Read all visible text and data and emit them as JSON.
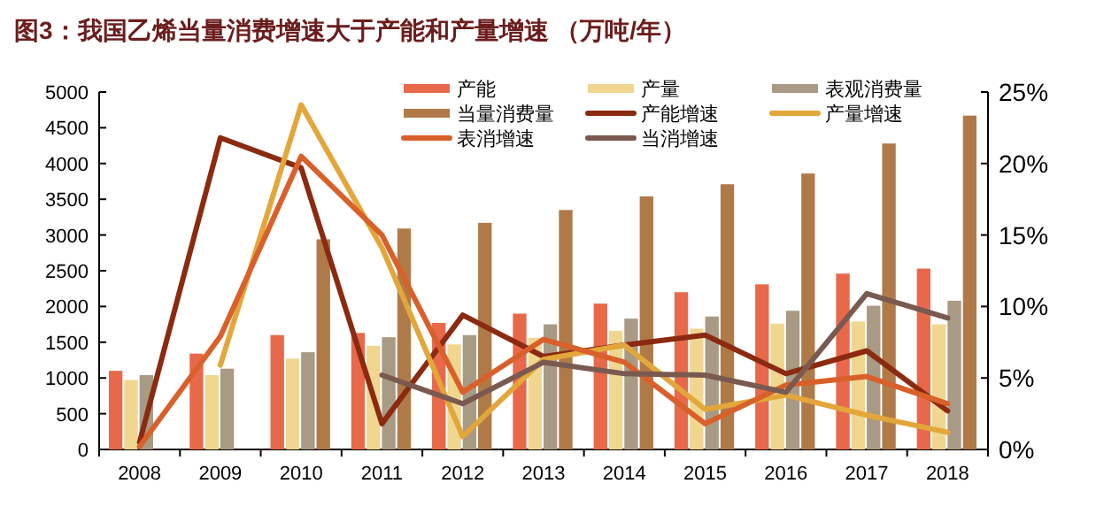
{
  "chart_data": {
    "type": "bar",
    "title": "图3：我国乙烯当量消费增速大于产能和产量增速 （万吨/年）",
    "categories": [
      "2008",
      "2009",
      "2010",
      "2011",
      "2012",
      "2013",
      "2014",
      "2015",
      "2016",
      "2017",
      "2018"
    ],
    "series": [
      {
        "name": "产能",
        "color": "#e8694a",
        "values": [
          1100,
          1340,
          1600,
          1630,
          1770,
          1900,
          2040,
          2200,
          2310,
          2460,
          2530
        ]
      },
      {
        "name": "产量",
        "color": "#f0d68e",
        "values": [
          970,
          1040,
          1270,
          1450,
          1470,
          1560,
          1660,
          1690,
          1760,
          1790,
          1750
        ]
      },
      {
        "name": "表观消费量",
        "color": "#a89a84",
        "values": [
          1040,
          1130,
          1360,
          1570,
          1600,
          1750,
          1830,
          1860,
          1940,
          2010,
          2080
        ]
      },
      {
        "name": "当量消费量",
        "color": "#b07a48",
        "values": [
          null,
          null,
          2940,
          3090,
          3170,
          3350,
          3540,
          3710,
          3860,
          4280,
          4670
        ]
      },
      {
        "name": "产能增速",
        "type": "line",
        "axis": "y2",
        "color": "#8b2a10",
        "values": [
          0.5,
          21.8,
          19.7,
          1.8,
          9.4,
          6.5,
          7.3,
          8.0,
          5.3,
          6.9,
          2.7
        ]
      },
      {
        "name": "产量增速",
        "type": "line",
        "axis": "y2",
        "color": "#e3a63a",
        "values": [
          null,
          5.9,
          24.1,
          14.1,
          0.9,
          6.3,
          7.3,
          2.8,
          3.8,
          2.4,
          1.2
        ]
      },
      {
        "name": "表消增速",
        "type": "line",
        "axis": "y2",
        "color": "#d9602a",
        "values": [
          0.2,
          7.9,
          20.5,
          15.0,
          4.0,
          7.7,
          6.1,
          1.8,
          4.5,
          5.1,
          3.2
        ]
      },
      {
        "name": "当消增速",
        "type": "line",
        "axis": "y2",
        "color": "#7a5a50",
        "values": [
          null,
          null,
          null,
          5.2,
          3.2,
          6.1,
          5.3,
          5.2,
          4.0,
          10.9,
          9.2
        ]
      }
    ],
    "ylim": [
      0,
      5000
    ],
    "yticks": [
      0,
      500,
      1000,
      1500,
      2000,
      2500,
      3000,
      3500,
      4000,
      4500,
      5000
    ],
    "y2lim": [
      0,
      25
    ],
    "y2ticks": [
      {
        "value": 0,
        "label": "0%"
      },
      {
        "value": 5,
        "label": "5%"
      },
      {
        "value": 10,
        "label": "10%"
      },
      {
        "value": 15,
        "label": "15%"
      },
      {
        "value": 20,
        "label": "20%"
      },
      {
        "value": 25,
        "label": "25%"
      }
    ],
    "legend": "top",
    "grid": false
  }
}
